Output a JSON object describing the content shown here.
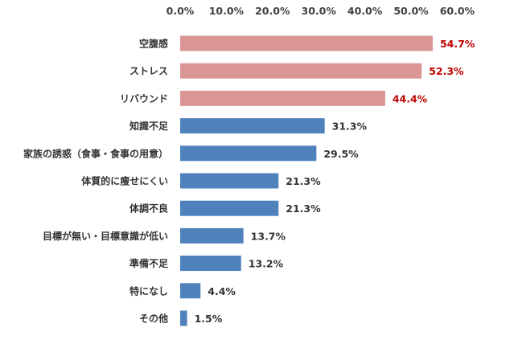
{
  "chart_data": {
    "type": "bar",
    "orientation": "horizontal",
    "title": "",
    "xlabel": "",
    "ylabel": "",
    "xlim": [
      0,
      60
    ],
    "x_ticks": [
      "0.0%",
      "10.0%",
      "20.0%",
      "30.0%",
      "40.0%",
      "50.0%",
      "60.0%"
    ],
    "axis_position": "top",
    "grid": false,
    "legend": "none",
    "categories": [
      "空腹感",
      "ストレス",
      "リバウンド",
      "知識不足",
      "家族の誘惑（食事・食事の用意）",
      "体質的に痩せにくい",
      "体調不良",
      "目標が無い・目標意識が低い",
      "準備不足",
      "特になし",
      "その他"
    ],
    "values": [
      54.7,
      52.3,
      44.4,
      31.3,
      29.5,
      21.3,
      21.3,
      13.7,
      13.2,
      4.4,
      1.5
    ],
    "value_labels": [
      "54.7%",
      "52.3%",
      "44.4%",
      "31.3%",
      "29.5%",
      "21.3%",
      "21.3%",
      "13.7%",
      "13.2%",
      "4.4%",
      "1.5%"
    ],
    "highlight_count": 3,
    "colors": {
      "highlight_bar": "#D99694",
      "highlight_label": "#C00000",
      "bar": "#4F81BD",
      "label": "#333333",
      "tick": "#404040"
    }
  }
}
